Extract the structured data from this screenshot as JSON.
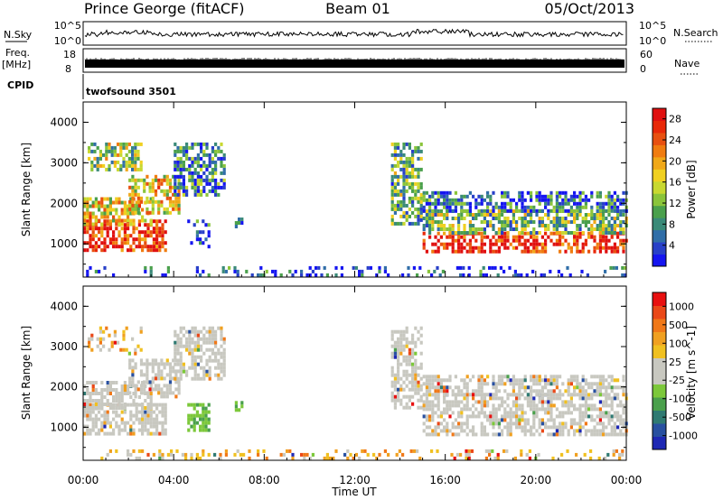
{
  "header": {
    "station": "Prince George (fitACF)",
    "beam": "Beam 01",
    "date": "05/Oct/2013"
  },
  "panels": {
    "nsky_label": "N.Sky",
    "nsearch_label": "N.Search",
    "nsky_ticks": [
      "10^5",
      "10^0"
    ],
    "nsearch_ticks": [
      "10^5",
      "10^0"
    ],
    "freq_label": "Freq.",
    "freq_unit": "[MHz]",
    "freq_ticks": [
      "18",
      "8"
    ],
    "nave_label": "Nave",
    "nave_ticks": [
      "60",
      "0"
    ],
    "cpid_label": "CPID",
    "cpid_value": "twofsound 3501"
  },
  "chart_data": [
    {
      "type": "heatmap",
      "name": "power",
      "ylabel": "Slant Range [km]",
      "xlabel": "Time UT",
      "x_ticks": [
        "00:00",
        "04:00",
        "08:00",
        "12:00",
        "16:00",
        "20:00",
        "00:00"
      ],
      "xlim_hours": [
        0,
        24
      ],
      "y_ticks": [
        "1000",
        "2000",
        "3000",
        "4000"
      ],
      "ylim": [
        180,
        4500
      ],
      "colorbar": {
        "label": "Power [dB]",
        "ticks": [
          "4",
          "8",
          "12",
          "16",
          "20",
          "24",
          "28"
        ],
        "range": [
          0,
          30
        ],
        "colors": [
          "#1515f0",
          "#2840c8",
          "#306ea8",
          "#3a8a78",
          "#4aa04c",
          "#8ac43a",
          "#c8d830",
          "#f0d020",
          "#f0a818",
          "#f07c10",
          "#e85010",
          "#e82808",
          "#e01010"
        ]
      },
      "regions": [
        {
          "t0": 0.0,
          "t1": 3.6,
          "r0": 850,
          "r1": 1600,
          "level": 0.9
        },
        {
          "t0": 0.0,
          "t1": 3.0,
          "r0": 1450,
          "r1": 2150,
          "level": 0.6
        },
        {
          "t0": 2.0,
          "t1": 4.2,
          "r0": 1800,
          "r1": 2700,
          "level": 0.6
        },
        {
          "t0": 0.2,
          "t1": 2.6,
          "r0": 2800,
          "r1": 3500,
          "level": 0.45
        },
        {
          "t0": 4.0,
          "t1": 6.2,
          "r0": 2200,
          "r1": 3500,
          "level": 0.25
        },
        {
          "t0": 4.6,
          "t1": 5.6,
          "r0": 950,
          "r1": 1600,
          "level": 0.18
        },
        {
          "t0": 6.7,
          "t1": 7.0,
          "r0": 1400,
          "r1": 1650,
          "level": 0.25
        },
        {
          "t0": 13.6,
          "t1": 15.0,
          "r0": 1500,
          "r1": 3500,
          "level": 0.35
        },
        {
          "t0": 15.0,
          "t1": 24.0,
          "r0": 800,
          "r1": 1300,
          "level": 0.92
        },
        {
          "t0": 15.0,
          "t1": 24.0,
          "r0": 1300,
          "r1": 1850,
          "level": 0.4
        },
        {
          "t0": 15.0,
          "t1": 24.0,
          "r0": 1850,
          "r1": 2300,
          "level": 0.2
        },
        {
          "t0": 0.0,
          "t1": 24.0,
          "r0": 200,
          "r1": 450,
          "level": 0.15
        }
      ]
    },
    {
      "type": "heatmap",
      "name": "velocity",
      "ylabel": "Slant Range [km]",
      "xlabel": "Time UT",
      "x_ticks": [
        "00:00",
        "04:00",
        "08:00",
        "12:00",
        "16:00",
        "20:00",
        "00:00"
      ],
      "xlim_hours": [
        0,
        24
      ],
      "y_ticks": [
        "1000",
        "2000",
        "3000",
        "4000"
      ],
      "ylim": [
        180,
        4500
      ],
      "colorbar": {
        "label": "Velocity [m s^-1]",
        "ticks": [
          "1000",
          "500",
          "100",
          "25",
          "-25",
          "-100",
          "-500",
          "-1000"
        ],
        "range": [
          -1200,
          1200
        ],
        "colors": [
          "#1e28b4",
          "#2850a0",
          "#2f7a72",
          "#4aa04c",
          "#7cc83a",
          "#c8c8c0",
          "#c8c8c0",
          "#f0c020",
          "#f0a020",
          "#f07818",
          "#ea4818",
          "#e81010"
        ]
      },
      "regions": [
        {
          "t0": 0.0,
          "t1": 3.6,
          "r0": 850,
          "r1": 1600,
          "kind": "gs"
        },
        {
          "t0": 0.0,
          "t1": 3.0,
          "r0": 1450,
          "r1": 2150,
          "kind": "gs"
        },
        {
          "t0": 2.0,
          "t1": 4.2,
          "r0": 1800,
          "r1": 2700,
          "kind": "gs"
        },
        {
          "t0": 0.2,
          "t1": 2.6,
          "r0": 2800,
          "r1": 3500,
          "kind": "sparse"
        },
        {
          "t0": 4.0,
          "t1": 6.2,
          "r0": 2200,
          "r1": 3500,
          "kind": "gs"
        },
        {
          "t0": 4.6,
          "t1": 5.6,
          "r0": 950,
          "r1": 1600,
          "kind": "green"
        },
        {
          "t0": 6.7,
          "t1": 7.0,
          "r0": 1400,
          "r1": 1650,
          "kind": "green"
        },
        {
          "t0": 13.6,
          "t1": 15.0,
          "r0": 1500,
          "r1": 3500,
          "kind": "gs"
        },
        {
          "t0": 15.0,
          "t1": 24.0,
          "r0": 800,
          "r1": 1850,
          "kind": "gs"
        },
        {
          "t0": 15.0,
          "t1": 24.0,
          "r0": 1850,
          "r1": 2300,
          "kind": "gs"
        },
        {
          "t0": 0.0,
          "t1": 24.0,
          "r0": 200,
          "r1": 450,
          "kind": "sparse"
        }
      ]
    }
  ]
}
